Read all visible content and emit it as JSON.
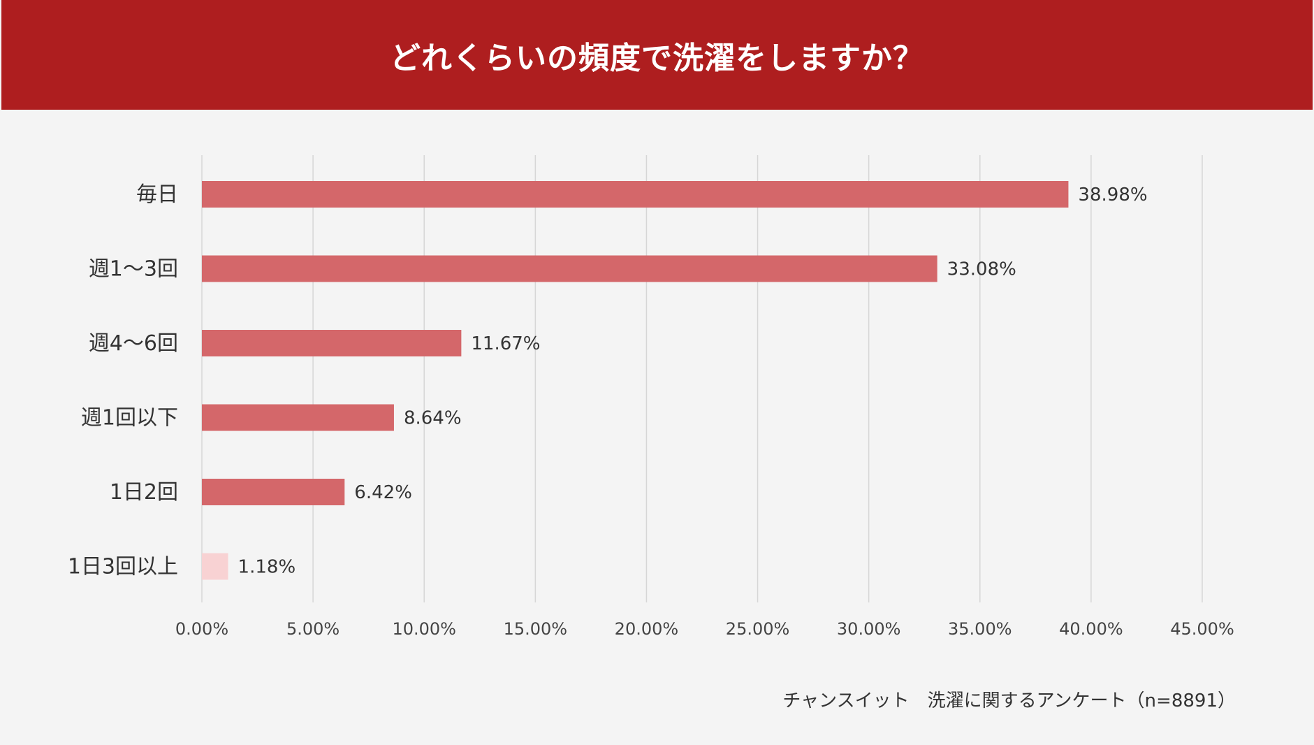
{
  "title": "どれくらいの頻度で洗濯をしますか？",
  "source": "チャンスイット　洗濯に関するアンケート（n=8891）",
  "chart_data": {
    "type": "bar",
    "orientation": "horizontal",
    "categories": [
      "毎日",
      "週1〜3回",
      "週4〜6回",
      "週1回以下",
      "1日2回",
      "1日3回以上"
    ],
    "values": [
      38.98,
      33.08,
      11.67,
      8.64,
      6.42,
      1.18
    ],
    "value_labels": [
      "38.98%",
      "33.08%",
      "11.67%",
      "8.64%",
      "6.42%",
      "1.18%"
    ],
    "xlim": [
      0,
      45
    ],
    "xticks": [
      0,
      5,
      10,
      15,
      20,
      25,
      30,
      35,
      40,
      45
    ],
    "xtick_labels": [
      "0.00%",
      "5.00%",
      "10.00%",
      "15.00%",
      "20.00%",
      "25.00%",
      "30.00%",
      "35.00%",
      "40.00%",
      "45.00%"
    ],
    "grid": true,
    "legend": "none",
    "bar_color": "#d4676a",
    "highlight_color": "#f8d2d3",
    "highlight_index": 5
  }
}
